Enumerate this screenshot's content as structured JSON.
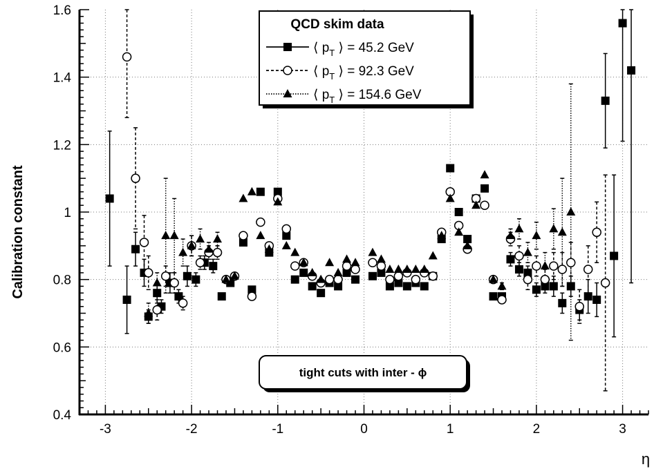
{
  "chart_data": {
    "type": "scatter",
    "xlabel": "η",
    "ylabel": "Calibration constant",
    "xlim": [
      -3.3,
      3.3
    ],
    "ylim": [
      0.4,
      1.6
    ],
    "x_ticks": [
      -3,
      -2,
      -1,
      0,
      1,
      2,
      3
    ],
    "x_tick_labels": [
      "-3",
      "-2",
      "-1",
      "0",
      "1",
      "2",
      "3"
    ],
    "y_ticks": [
      0.4,
      0.6,
      0.8,
      1.0,
      1.2,
      1.4,
      1.6
    ],
    "y_tick_labels": [
      "0.4",
      "0.6",
      "0.8",
      "1",
      "1.2",
      "1.4",
      "1.6"
    ],
    "grid": true,
    "legend": {
      "title": "QCD skim data",
      "placement": "top-center",
      "entries": [
        {
          "prefix": "⟨ p",
          "sub": "T",
          "suffix": " ⟩ = 45.2 GeV"
        },
        {
          "prefix": "⟨ p",
          "sub": "T",
          "suffix": " ⟩ = 92.3 GeV"
        },
        {
          "prefix": "⟨ p",
          "sub": "T",
          "suffix": " ⟩ = 154.6 GeV"
        }
      ]
    },
    "annotation": "tight cuts  with  inter - ϕ",
    "series": [
      {
        "marker": "square-filled",
        "line": "solid",
        "points": [
          [
            -2.95,
            1.04,
            0.2
          ],
          [
            -2.75,
            0.74,
            0.1
          ],
          [
            -2.65,
            0.89,
            0.05
          ],
          [
            -2.55,
            0.82,
            0.04
          ],
          [
            -2.5,
            0.69,
            0.02
          ],
          [
            -2.4,
            0.76,
            0.03
          ],
          [
            -2.35,
            0.72,
            0.02
          ],
          [
            -2.25,
            0.79,
            0.03
          ],
          [
            -2.15,
            0.75,
            0.02
          ],
          [
            -2.05,
            0.81,
            0.03
          ],
          [
            -1.95,
            0.8,
            0.02
          ],
          [
            -1.85,
            0.85,
            0.02
          ],
          [
            -1.75,
            0.84,
            0.02
          ],
          [
            -1.65,
            0.75,
            0.01
          ],
          [
            -1.55,
            0.79,
            0.01
          ],
          [
            -1.4,
            0.91,
            0
          ],
          [
            -1.3,
            0.77,
            0
          ],
          [
            -1.2,
            1.06,
            0
          ],
          [
            -1.1,
            0.88,
            0
          ],
          [
            -1.0,
            1.06,
            0
          ],
          [
            -0.9,
            0.93,
            0
          ],
          [
            -0.8,
            0.8,
            0
          ],
          [
            -0.7,
            0.82,
            0
          ],
          [
            -0.6,
            0.78,
            0
          ],
          [
            -0.5,
            0.76,
            0
          ],
          [
            -0.4,
            0.79,
            0
          ],
          [
            -0.3,
            0.78,
            0
          ],
          [
            -0.2,
            0.82,
            0
          ],
          [
            -0.1,
            0.8,
            0
          ],
          [
            0.1,
            0.81,
            0
          ],
          [
            0.2,
            0.82,
            0
          ],
          [
            0.3,
            0.78,
            0
          ],
          [
            0.4,
            0.79,
            0
          ],
          [
            0.5,
            0.78,
            0
          ],
          [
            0.6,
            0.79,
            0
          ],
          [
            0.7,
            0.78,
            0
          ],
          [
            0.8,
            0.81,
            0
          ],
          [
            0.9,
            0.92,
            0
          ],
          [
            1.0,
            1.13,
            0
          ],
          [
            1.1,
            1.0,
            0
          ],
          [
            1.2,
            0.92,
            0
          ],
          [
            1.3,
            1.04,
            0
          ],
          [
            1.4,
            1.07,
            0
          ],
          [
            1.5,
            0.75,
            0
          ],
          [
            1.6,
            0.75,
            0.01
          ],
          [
            1.7,
            0.86,
            0.02
          ],
          [
            1.8,
            0.83,
            0.02
          ],
          [
            1.9,
            0.82,
            0.02
          ],
          [
            2.0,
            0.77,
            0.02
          ],
          [
            2.1,
            0.78,
            0.02
          ],
          [
            2.2,
            0.78,
            0.03
          ],
          [
            2.3,
            0.73,
            0.03
          ],
          [
            2.4,
            0.78,
            0.03
          ],
          [
            2.5,
            0.71,
            0.03
          ],
          [
            2.6,
            0.75,
            0.05
          ],
          [
            2.7,
            0.74,
            0.05
          ],
          [
            2.8,
            1.33,
            0.14
          ],
          [
            2.9,
            0.87,
            0.24
          ],
          [
            3.0,
            1.56,
            0.35
          ],
          [
            3.1,
            1.42,
            0.63
          ]
        ]
      },
      {
        "marker": "circle-open",
        "line": "dashed",
        "points": [
          [
            -2.75,
            1.46,
            0.18
          ],
          [
            -2.65,
            1.1,
            0.15
          ],
          [
            -2.55,
            0.91,
            0.08
          ],
          [
            -2.5,
            0.82,
            0.05
          ],
          [
            -2.4,
            0.71,
            0.03
          ],
          [
            -2.3,
            0.81,
            0.03
          ],
          [
            -2.2,
            0.79,
            0.03
          ],
          [
            -2.1,
            0.73,
            0.02
          ],
          [
            -2.0,
            0.9,
            0.03
          ],
          [
            -1.9,
            0.85,
            0.02
          ],
          [
            -1.8,
            0.88,
            0.02
          ],
          [
            -1.7,
            0.88,
            0.02
          ],
          [
            -1.6,
            0.8,
            0.01
          ],
          [
            -1.5,
            0.81,
            0.01
          ],
          [
            -1.4,
            0.93,
            0
          ],
          [
            -1.3,
            0.75,
            0
          ],
          [
            -1.2,
            0.97,
            0
          ],
          [
            -1.1,
            0.9,
            0
          ],
          [
            -1.0,
            1.04,
            0
          ],
          [
            -0.9,
            0.95,
            0
          ],
          [
            -0.8,
            0.84,
            0
          ],
          [
            -0.7,
            0.85,
            0
          ],
          [
            -0.6,
            0.81,
            0
          ],
          [
            -0.5,
            0.79,
            0
          ],
          [
            -0.4,
            0.8,
            0
          ],
          [
            -0.3,
            0.8,
            0
          ],
          [
            -0.2,
            0.84,
            0
          ],
          [
            -0.1,
            0.83,
            0
          ],
          [
            0.1,
            0.85,
            0
          ],
          [
            0.2,
            0.84,
            0
          ],
          [
            0.3,
            0.8,
            0
          ],
          [
            0.4,
            0.81,
            0
          ],
          [
            0.5,
            0.82,
            0
          ],
          [
            0.6,
            0.8,
            0
          ],
          [
            0.7,
            0.82,
            0
          ],
          [
            0.8,
            0.81,
            0
          ],
          [
            0.9,
            0.94,
            0
          ],
          [
            1.0,
            1.06,
            0
          ],
          [
            1.1,
            0.96,
            0
          ],
          [
            1.2,
            0.89,
            0
          ],
          [
            1.3,
            1.04,
            0
          ],
          [
            1.4,
            1.02,
            0
          ],
          [
            1.5,
            0.8,
            0
          ],
          [
            1.6,
            0.74,
            0.01
          ],
          [
            1.7,
            0.92,
            0.02
          ],
          [
            1.8,
            0.87,
            0.03
          ],
          [
            1.9,
            0.8,
            0.03
          ],
          [
            2.0,
            0.84,
            0.03
          ],
          [
            2.1,
            0.8,
            0.03
          ],
          [
            2.2,
            0.84,
            0.04
          ],
          [
            2.3,
            0.83,
            0.05
          ],
          [
            2.4,
            0.85,
            0.06
          ],
          [
            2.5,
            0.72,
            0.05
          ],
          [
            2.6,
            0.83,
            0.07
          ],
          [
            2.7,
            0.94,
            0.09
          ],
          [
            2.8,
            0.79,
            0.32
          ]
        ]
      },
      {
        "marker": "triangle-filled",
        "line": "dotted",
        "points": [
          [
            -2.5,
            0.7,
            0.03
          ],
          [
            -2.4,
            0.79,
            0.03
          ],
          [
            -2.3,
            0.93,
            0.17
          ],
          [
            -2.2,
            0.93,
            0.11
          ],
          [
            -2.1,
            0.88,
            0.04
          ],
          [
            -2.0,
            0.9,
            0.03
          ],
          [
            -1.9,
            0.92,
            0.03
          ],
          [
            -1.8,
            0.89,
            0.02
          ],
          [
            -1.7,
            0.92,
            0.02
          ],
          [
            -1.6,
            0.8,
            0.01
          ],
          [
            -1.5,
            0.81,
            0.01
          ],
          [
            -1.4,
            1.04,
            0
          ],
          [
            -1.3,
            1.06,
            0
          ],
          [
            -1.2,
            0.93,
            0
          ],
          [
            -1.1,
            0.89,
            0
          ],
          [
            -1.0,
            1.03,
            0
          ],
          [
            -0.9,
            0.9,
            0
          ],
          [
            -0.8,
            0.88,
            0
          ],
          [
            -0.7,
            0.85,
            0
          ],
          [
            -0.6,
            0.82,
            0
          ],
          [
            -0.5,
            0.8,
            0
          ],
          [
            -0.4,
            0.85,
            0
          ],
          [
            -0.3,
            0.82,
            0
          ],
          [
            -0.2,
            0.86,
            0
          ],
          [
            -0.1,
            0.85,
            0
          ],
          [
            0.1,
            0.88,
            0
          ],
          [
            0.2,
            0.86,
            0
          ],
          [
            0.3,
            0.83,
            0
          ],
          [
            0.4,
            0.83,
            0
          ],
          [
            0.5,
            0.83,
            0
          ],
          [
            0.6,
            0.83,
            0
          ],
          [
            0.7,
            0.83,
            0
          ],
          [
            0.8,
            0.87,
            0
          ],
          [
            0.9,
            0.93,
            0
          ],
          [
            1.0,
            1.04,
            0
          ],
          [
            1.1,
            0.94,
            0
          ],
          [
            1.2,
            0.9,
            0
          ],
          [
            1.3,
            1.02,
            0
          ],
          [
            1.4,
            1.11,
            0
          ],
          [
            1.5,
            0.8,
            0
          ],
          [
            1.6,
            0.78,
            0.01
          ],
          [
            1.7,
            0.93,
            0.02
          ],
          [
            1.8,
            0.95,
            0.03
          ],
          [
            1.9,
            0.88,
            0.03
          ],
          [
            2.0,
            0.93,
            0.04
          ],
          [
            2.1,
            0.84,
            0.04
          ],
          [
            2.2,
            0.95,
            0.06
          ],
          [
            2.3,
            0.94,
            0.16
          ],
          [
            2.4,
            1.0,
            0.38
          ]
        ]
      }
    ]
  }
}
